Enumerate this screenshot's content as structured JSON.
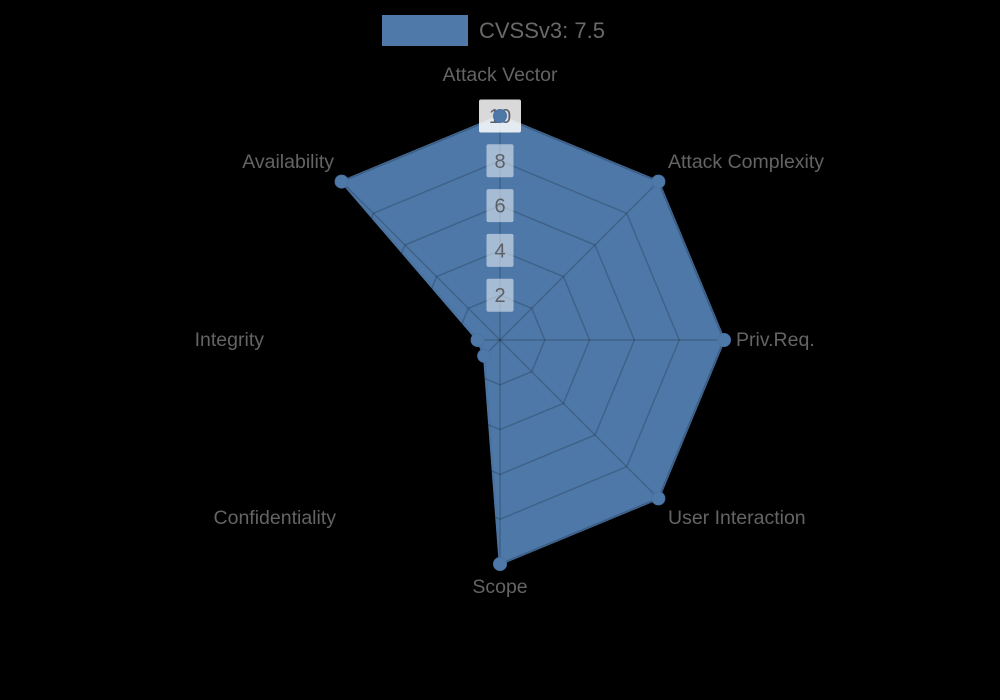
{
  "legend": {
    "label": "CVSSv3: 7.5",
    "swatch_color": "#4e79a8"
  },
  "chart_data": {
    "type": "radar",
    "title": "CVSSv3: 7.5",
    "categories": [
      "Attack Vector",
      "Attack Complexity",
      "Priv.Req.",
      "User Interaction",
      "Scope",
      "Confidentiality",
      "Integrity",
      "Availability"
    ],
    "series": [
      {
        "name": "CVSSv3: 7.5",
        "values": [
          10,
          10,
          10,
          10,
          10,
          1,
          1,
          10
        ]
      }
    ],
    "radial_ticks": [
      2,
      4,
      6,
      8,
      10
    ],
    "radial_range": [
      0,
      10
    ],
    "grid": true,
    "legend_position": "top-center",
    "colors": {
      "fill": "#4d78a8",
      "outline": "#4a73a2",
      "grid_line": "rgba(0,0,0,0.18)",
      "tick_box": "rgba(255,255,255,0.5)",
      "tick_box_outer": "rgba(255,255,255,0.85)",
      "tick_text": "#5b5f66",
      "axis_label": "#646464",
      "background": "#000000"
    }
  }
}
